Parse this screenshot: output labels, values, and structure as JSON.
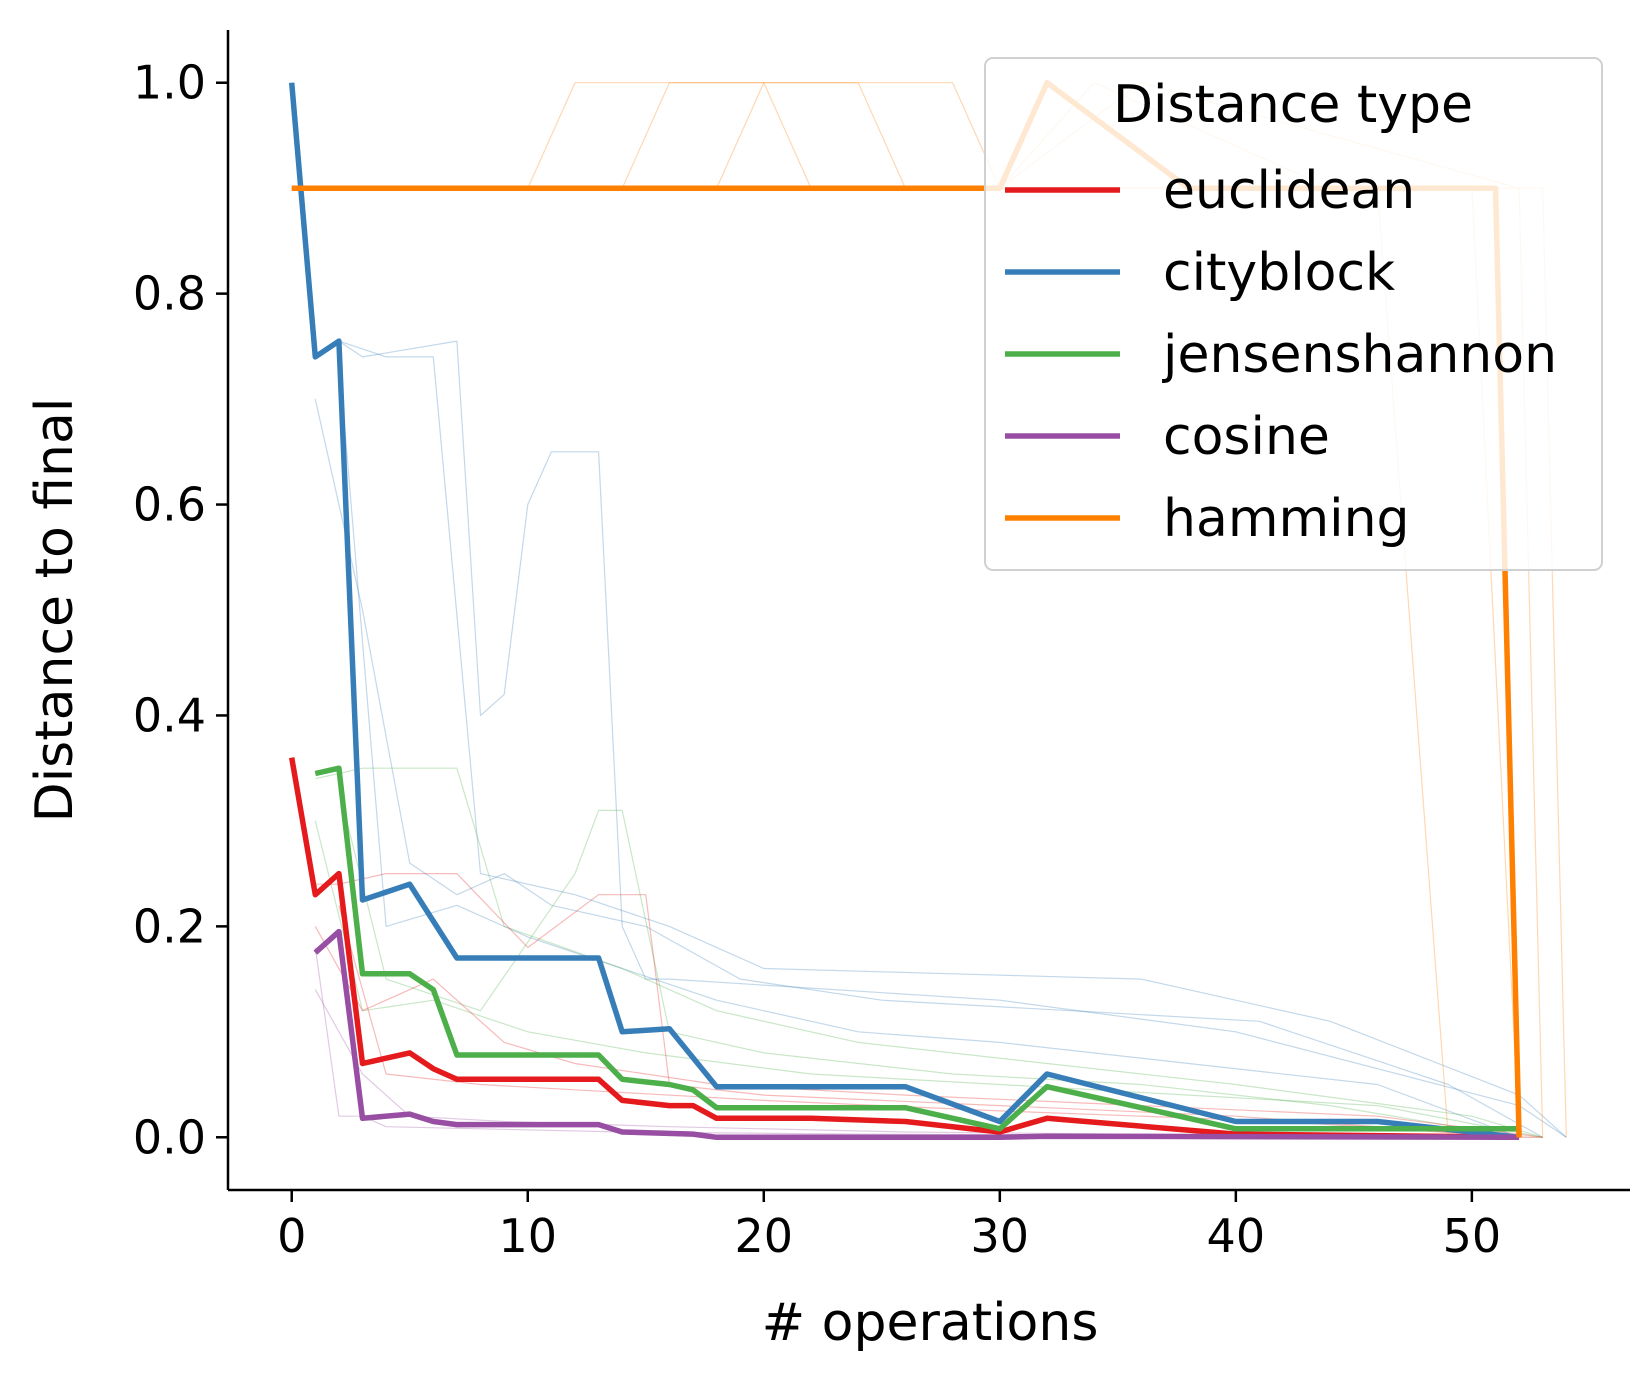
{
  "chart_data": {
    "type": "line",
    "xlabel": "# operations",
    "ylabel": "Distance to final",
    "xlim": [
      -2.7,
      56.7
    ],
    "ylim": [
      -0.05,
      1.05
    ],
    "xticks": [
      0,
      10,
      20,
      30,
      40,
      50
    ],
    "yticks": [
      0.0,
      0.2,
      0.4,
      0.6,
      0.8,
      1.0
    ],
    "xtick_labels": [
      "0",
      "10",
      "20",
      "30",
      "40",
      "50"
    ],
    "ytick_labels": [
      "0.0",
      "0.2",
      "0.4",
      "0.6",
      "0.8",
      "1.0"
    ],
    "grid": false,
    "legend": {
      "title": "Distance type",
      "placement": "top-right"
    },
    "series": [
      {
        "name": "euclidean",
        "color": "#e41a1c",
        "x": [
          0,
          1,
          2,
          3,
          5,
          6,
          7,
          13,
          14,
          16,
          17,
          18,
          20,
          22,
          26,
          30,
          32,
          40,
          52
        ],
        "y": [
          0.36,
          0.23,
          0.25,
          0.07,
          0.08,
          0.065,
          0.055,
          0.055,
          0.035,
          0.03,
          0.03,
          0.018,
          0.018,
          0.018,
          0.015,
          0.005,
          0.018,
          0.003,
          0.0
        ]
      },
      {
        "name": "cityblock",
        "color": "#377eb8",
        "x": [
          0,
          1,
          2,
          3,
          5,
          7,
          13,
          14,
          16,
          18,
          26,
          30,
          32,
          40,
          46,
          52
        ],
        "y": [
          1.0,
          0.74,
          0.755,
          0.225,
          0.24,
          0.17,
          0.17,
          0.1,
          0.103,
          0.048,
          0.048,
          0.015,
          0.06,
          0.015,
          0.015,
          0.0
        ]
      },
      {
        "name": "jensenshannon",
        "color": "#4daf4a",
        "x": [
          1,
          2,
          3,
          5,
          6,
          7,
          13,
          14,
          16,
          17,
          18,
          26,
          30,
          32,
          40,
          52
        ],
        "y": [
          0.345,
          0.35,
          0.155,
          0.155,
          0.14,
          0.078,
          0.078,
          0.055,
          0.05,
          0.045,
          0.028,
          0.028,
          0.008,
          0.048,
          0.008,
          0.008
        ]
      },
      {
        "name": "cosine",
        "color": "#984ea3",
        "x": [
          1,
          2,
          3,
          5,
          6,
          7,
          13,
          14,
          17,
          18,
          30,
          32,
          52
        ],
        "y": [
          0.175,
          0.195,
          0.018,
          0.022,
          0.015,
          0.012,
          0.012,
          0.005,
          0.003,
          0.0,
          0.0,
          0.001,
          0.0
        ]
      },
      {
        "name": "hamming",
        "color": "#ff7f00",
        "x": [
          0,
          30,
          32,
          38,
          51,
          52
        ],
        "y": [
          0.9,
          0.9,
          1.0,
          0.9,
          0.9,
          0.0
        ]
      }
    ],
    "background_traces": [
      {
        "color": "#377eb8",
        "x": [
          1,
          2,
          3,
          7,
          8,
          9,
          10,
          11,
          13,
          14,
          15,
          16,
          30,
          40,
          52,
          54
        ],
        "y": [
          0.74,
          0.755,
          0.74,
          0.755,
          0.4,
          0.42,
          0.6,
          0.65,
          0.65,
          0.2,
          0.15,
          0.15,
          0.13,
          0.1,
          0.03,
          0.0
        ]
      },
      {
        "color": "#377eb8",
        "x": [
          2,
          4,
          6,
          8,
          12,
          16,
          20,
          28,
          36,
          44,
          52,
          54
        ],
        "y": [
          0.755,
          0.74,
          0.74,
          0.25,
          0.23,
          0.2,
          0.16,
          0.155,
          0.15,
          0.11,
          0.04,
          0.0
        ]
      },
      {
        "color": "#377eb8",
        "x": [
          1,
          3,
          5,
          7,
          9,
          11,
          15,
          19,
          25,
          33,
          41,
          49,
          53
        ],
        "y": [
          0.7,
          0.5,
          0.26,
          0.23,
          0.25,
          0.22,
          0.2,
          0.15,
          0.13,
          0.12,
          0.11,
          0.05,
          0.0
        ]
      },
      {
        "color": "#377eb8",
        "x": [
          2,
          4,
          7,
          10,
          14,
          18,
          24,
          30,
          38,
          46,
          52
        ],
        "y": [
          0.74,
          0.2,
          0.22,
          0.19,
          0.16,
          0.13,
          0.1,
          0.09,
          0.07,
          0.05,
          0.0
        ]
      },
      {
        "color": "#4daf4a",
        "x": [
          1,
          3,
          5,
          7,
          9,
          14,
          18,
          24,
          32,
          40,
          50,
          53
        ],
        "y": [
          0.34,
          0.35,
          0.35,
          0.35,
          0.2,
          0.16,
          0.12,
          0.09,
          0.07,
          0.05,
          0.02,
          0.0
        ]
      },
      {
        "color": "#4daf4a",
        "x": [
          2,
          4,
          8,
          12,
          13,
          14,
          16,
          20,
          28,
          36,
          44,
          52
        ],
        "y": [
          0.33,
          0.15,
          0.12,
          0.25,
          0.31,
          0.31,
          0.1,
          0.08,
          0.06,
          0.05,
          0.03,
          0.0
        ]
      },
      {
        "color": "#4daf4a",
        "x": [
          1,
          3,
          6,
          10,
          15,
          22,
          30,
          38,
          46,
          53
        ],
        "y": [
          0.3,
          0.12,
          0.13,
          0.1,
          0.08,
          0.06,
          0.05,
          0.04,
          0.03,
          0.0
        ]
      },
      {
        "color": "#e41a1c",
        "x": [
          1,
          2,
          4,
          7,
          10,
          13,
          14,
          15,
          16,
          20,
          30,
          40,
          52
        ],
        "y": [
          0.24,
          0.24,
          0.25,
          0.25,
          0.18,
          0.23,
          0.23,
          0.23,
          0.05,
          0.04,
          0.03,
          0.02,
          0.0
        ]
      },
      {
        "color": "#e41a1c",
        "x": [
          1,
          3,
          6,
          9,
          12,
          18,
          26,
          36,
          46,
          53
        ],
        "y": [
          0.2,
          0.12,
          0.15,
          0.09,
          0.07,
          0.05,
          0.04,
          0.03,
          0.02,
          0.0
        ]
      },
      {
        "color": "#e41a1c",
        "x": [
          2,
          4,
          8,
          12,
          20,
          30,
          42,
          52
        ],
        "y": [
          0.22,
          0.06,
          0.05,
          0.045,
          0.035,
          0.025,
          0.015,
          0.0
        ]
      },
      {
        "color": "#984ea3",
        "x": [
          1,
          2,
          3,
          4,
          8,
          14,
          24,
          36,
          48,
          53
        ],
        "y": [
          0.18,
          0.02,
          0.02,
          0.01,
          0.008,
          0.005,
          0.003,
          0.002,
          0.001,
          0.0
        ]
      },
      {
        "color": "#984ea3",
        "x": [
          1,
          3,
          5,
          9,
          16,
          26,
          40,
          52
        ],
        "y": [
          0.14,
          0.06,
          0.02,
          0.015,
          0.01,
          0.005,
          0.002,
          0.0
        ]
      },
      {
        "color": "#ff7f00",
        "x": [
          0,
          10,
          12,
          20,
          22,
          30,
          34,
          44,
          48,
          50,
          52
        ],
        "y": [
          0.9,
          0.9,
          1.0,
          1.0,
          0.9,
          0.9,
          1.0,
          0.9,
          0.9,
          0.9,
          0.0
        ]
      },
      {
        "color": "#ff7f00",
        "x": [
          0,
          14,
          16,
          24,
          26,
          32,
          38,
          50,
          52,
          53
        ],
        "y": [
          0.9,
          0.9,
          1.0,
          1.0,
          0.9,
          0.9,
          0.9,
          0.9,
          0.9,
          0.0
        ]
      },
      {
        "color": "#ff7f00",
        "x": [
          0,
          18,
          20,
          28,
          30,
          36,
          52,
          53,
          54
        ],
        "y": [
          0.9,
          0.9,
          1.0,
          1.0,
          0.9,
          1.0,
          0.9,
          0.9,
          0.0
        ]
      },
      {
        "color": "#ff7f00",
        "x": [
          0,
          34,
          40,
          46,
          49,
          53
        ],
        "y": [
          0.9,
          0.9,
          0.9,
          0.9,
          0.0,
          0.0
        ]
      }
    ]
  }
}
